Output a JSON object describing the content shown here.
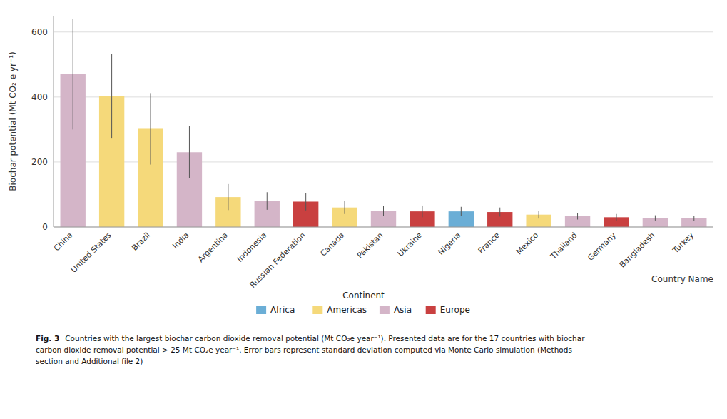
{
  "chart_data": {
    "type": "bar",
    "categories": [
      "China",
      "United States",
      "Brazil",
      "India",
      "Argentina",
      "Indonesia",
      "Russian Federation",
      "Canada",
      "Pakistan",
      "Ukraine",
      "Nigeria",
      "France",
      "Mexico",
      "Thailand",
      "Germany",
      "Bangladesh",
      "Turkey"
    ],
    "values": [
      470,
      402,
      302,
      230,
      92,
      80,
      78,
      60,
      50,
      48,
      48,
      46,
      38,
      33,
      30,
      28,
      27
    ],
    "errors": [
      170,
      130,
      110,
      80,
      40,
      27,
      27,
      20,
      15,
      18,
      14,
      14,
      12,
      10,
      10,
      8,
      8
    ],
    "colors": [
      "#d4b5c8",
      "#f5d97a",
      "#f5d97a",
      "#d4b5c8",
      "#f5d97a",
      "#d4b5c8",
      "#c94040",
      "#f5d97a",
      "#d4b5c8",
      "#c94040",
      "#6baed6",
      "#c94040",
      "#f5d97a",
      "#d4b5c8",
      "#c94040",
      "#d4b5c8",
      "#d4b5c8"
    ],
    "y_label": "Biochar potential (Mt CO₂ e yr⁻¹)",
    "x_label": "Country Name",
    "ylim": [
      0,
      650
    ],
    "yticks": [
      0,
      200,
      400,
      600
    ],
    "grid": true,
    "legend": "bottom",
    "legend_title": "Continent",
    "legend_items": [
      {
        "name": "Africa",
        "color": "#6baed6"
      },
      {
        "name": "Americas",
        "color": "#f5d97a"
      },
      {
        "name": "Asia",
        "color": "#d4b5c8"
      },
      {
        "name": "Europe",
        "color": "#c94040"
      }
    ],
    "caption_bold": "Fig. 3",
    "caption_lines": [
      "Countries with the largest biochar carbon dioxide removal potential (Mt CO₂e year⁻¹). Presented data are for the 17 countries with biochar",
      "carbon dioxide removal potential > 25 Mt CO₂e year⁻¹. Error bars represent standard deviation computed via Monte Carlo simulation (Methods",
      "section and Additional file 2)"
    ]
  }
}
